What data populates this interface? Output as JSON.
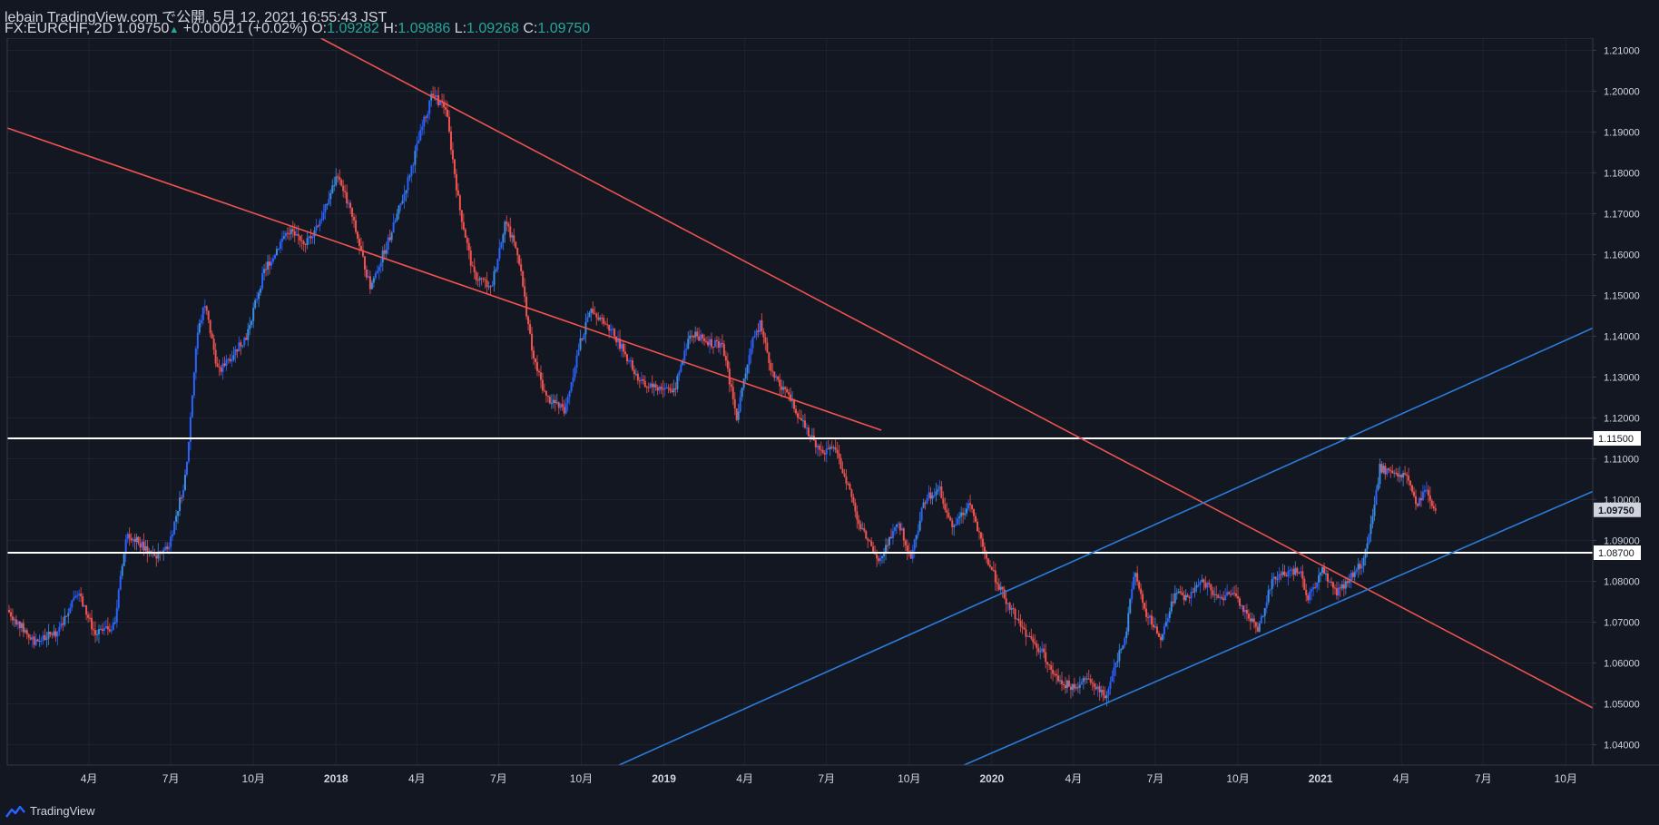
{
  "header": {
    "publish_line": "lebain TradingView.com で公開, 5月 12, 2021 16:55:43 JST",
    "symbol": "FX:EURCHF, 2D",
    "last": "1.09750",
    "change": "+0.00021 (+0.02%)",
    "o_label": "O:",
    "o": "1.09282",
    "h_label": "H:",
    "h": "1.09886",
    "l_label": "L:",
    "l": "1.09268",
    "c_label": "C:",
    "c": "1.09750"
  },
  "footer": {
    "brand": "TradingView"
  },
  "colors": {
    "background": "#131722",
    "up": "#2962ff",
    "up_alt": "#3a8ee6",
    "down": "#ef5350",
    "channel_red": "#ef5350",
    "channel_blue": "#2b7bd9",
    "hline": "#ffffff",
    "axis_text": "#d1d4dc",
    "last_price_bg": "#d1d4dc"
  },
  "chart_data": {
    "type": "line",
    "symbol": "FX:EURCHF",
    "timeframe": "2D",
    "ylim": [
      1.035,
      1.213
    ],
    "y_ticks": [
      "1.04000",
      "1.05000",
      "1.06000",
      "1.07000",
      "1.08000",
      "1.09000",
      "1.10000",
      "1.11000",
      "1.12000",
      "1.13000",
      "1.14000",
      "1.15000",
      "1.16000",
      "1.17000",
      "1.18000",
      "1.19000",
      "1.20000",
      "1.21000"
    ],
    "x_ticks": [
      {
        "label": "4月",
        "date": "2017-04-01"
      },
      {
        "label": "7月",
        "date": "2017-07-01"
      },
      {
        "label": "10月",
        "date": "2017-10-01"
      },
      {
        "label": "2018",
        "date": "2018-01-01"
      },
      {
        "label": "4月",
        "date": "2018-04-01"
      },
      {
        "label": "7月",
        "date": "2018-07-01"
      },
      {
        "label": "10月",
        "date": "2018-10-01"
      },
      {
        "label": "2019",
        "date": "2019-01-01"
      },
      {
        "label": "4月",
        "date": "2019-04-01"
      },
      {
        "label": "7月",
        "date": "2019-07-01"
      },
      {
        "label": "10月",
        "date": "2019-10-01"
      },
      {
        "label": "2020",
        "date": "2020-01-01"
      },
      {
        "label": "4月",
        "date": "2020-04-01"
      },
      {
        "label": "7月",
        "date": "2020-07-01"
      },
      {
        "label": "10月",
        "date": "2020-10-01"
      },
      {
        "label": "2021",
        "date": "2021-01-01"
      },
      {
        "label": "4月",
        "date": "2021-04-01"
      },
      {
        "label": "7月",
        "date": "2021-07-01"
      },
      {
        "label": "10月",
        "date": "2021-10-01"
      }
    ],
    "price_path": [
      [
        "2017-01-02",
        1.073
      ],
      [
        "2017-02-01",
        1.065
      ],
      [
        "2017-03-01",
        1.068
      ],
      [
        "2017-03-20",
        1.078
      ],
      [
        "2017-04-10",
        1.067
      ],
      [
        "2017-05-01",
        1.069
      ],
      [
        "2017-05-15",
        1.092
      ],
      [
        "2017-06-15",
        1.086
      ],
      [
        "2017-07-01",
        1.089
      ],
      [
        "2017-07-20",
        1.106
      ],
      [
        "2017-08-01",
        1.14
      ],
      [
        "2017-08-10",
        1.148
      ],
      [
        "2017-08-25",
        1.131
      ],
      [
        "2017-09-25",
        1.14
      ],
      [
        "2017-10-15",
        1.156
      ],
      [
        "2017-11-10",
        1.166
      ],
      [
        "2017-12-01",
        1.163
      ],
      [
        "2017-12-20",
        1.17
      ],
      [
        "2018-01-05",
        1.18
      ],
      [
        "2018-01-20",
        1.17
      ],
      [
        "2018-02-10",
        1.152
      ],
      [
        "2018-03-05",
        1.165
      ],
      [
        "2018-03-20",
        1.175
      ],
      [
        "2018-04-10",
        1.192
      ],
      [
        "2018-04-20",
        1.199
      ],
      [
        "2018-05-05",
        1.196
      ],
      [
        "2018-05-20",
        1.172
      ],
      [
        "2018-06-05",
        1.155
      ],
      [
        "2018-06-25",
        1.152
      ],
      [
        "2018-07-10",
        1.168
      ],
      [
        "2018-07-25",
        1.16
      ],
      [
        "2018-08-10",
        1.135
      ],
      [
        "2018-08-25",
        1.125
      ],
      [
        "2018-09-15",
        1.122
      ],
      [
        "2018-10-01",
        1.138
      ],
      [
        "2018-10-15",
        1.147
      ],
      [
        "2018-11-10",
        1.14
      ],
      [
        "2018-12-10",
        1.128
      ],
      [
        "2019-01-15",
        1.127
      ],
      [
        "2019-02-01",
        1.141
      ],
      [
        "2019-02-20",
        1.139
      ],
      [
        "2019-03-10",
        1.137
      ],
      [
        "2019-03-25",
        1.12
      ],
      [
        "2019-04-10",
        1.138
      ],
      [
        "2019-04-20",
        1.143
      ],
      [
        "2019-05-05",
        1.13
      ],
      [
        "2019-05-25",
        1.124
      ],
      [
        "2019-06-15",
        1.115
      ],
      [
        "2019-07-01",
        1.112
      ],
      [
        "2019-07-10",
        1.113
      ],
      [
        "2019-07-25",
        1.105
      ],
      [
        "2019-08-10",
        1.093
      ],
      [
        "2019-09-01",
        1.085
      ],
      [
        "2019-09-20",
        1.095
      ],
      [
        "2019-10-05",
        1.086
      ],
      [
        "2019-10-20",
        1.1
      ],
      [
        "2019-11-05",
        1.103
      ],
      [
        "2019-11-20",
        1.093
      ],
      [
        "2019-12-10",
        1.099
      ],
      [
        "2019-12-25",
        1.087
      ],
      [
        "2020-01-15",
        1.077
      ],
      [
        "2020-02-10",
        1.067
      ],
      [
        "2020-03-01",
        1.062
      ],
      [
        "2020-03-15",
        1.056
      ],
      [
        "2020-04-01",
        1.054
      ],
      [
        "2020-04-20",
        1.056
      ],
      [
        "2020-05-10",
        1.052
      ],
      [
        "2020-05-20",
        1.06
      ],
      [
        "2020-06-01",
        1.068
      ],
      [
        "2020-06-10",
        1.083
      ],
      [
        "2020-06-20",
        1.073
      ],
      [
        "2020-07-10",
        1.066
      ],
      [
        "2020-07-25",
        1.077
      ],
      [
        "2020-08-10",
        1.076
      ],
      [
        "2020-08-25",
        1.08
      ],
      [
        "2020-09-10",
        1.076
      ],
      [
        "2020-09-25",
        1.077
      ],
      [
        "2020-10-10",
        1.073
      ],
      [
        "2020-10-25",
        1.068
      ],
      [
        "2020-11-10",
        1.08
      ],
      [
        "2020-11-25",
        1.082
      ],
      [
        "2020-12-10",
        1.083
      ],
      [
        "2020-12-20",
        1.076
      ],
      [
        "2021-01-05",
        1.083
      ],
      [
        "2021-01-20",
        1.077
      ],
      [
        "2021-02-05",
        1.081
      ],
      [
        "2021-02-20",
        1.085
      ],
      [
        "2021-03-01",
        1.094
      ],
      [
        "2021-03-10",
        1.108
      ],
      [
        "2021-03-25",
        1.106
      ],
      [
        "2021-04-10",
        1.106
      ],
      [
        "2021-04-20",
        1.098
      ],
      [
        "2021-04-30",
        1.103
      ],
      [
        "2021-05-10",
        1.0975
      ]
    ],
    "annotations": {
      "horizontal_lines": [
        1.115,
        1.087
      ],
      "trend_lines": [
        {
          "color": "red",
          "from": [
            "2016-12-31",
            1.191
          ],
          "to": [
            "2019-08-31",
            1.117
          ]
        },
        {
          "color": "red",
          "from": [
            "2017-12-15",
            1.213
          ],
          "to": [
            "2021-10-31",
            1.049
          ]
        },
        {
          "color": "blue",
          "from": [
            "2018-11-12",
            1.035
          ],
          "to": [
            "2021-10-31",
            1.142
          ]
        },
        {
          "color": "blue",
          "from": [
            "2019-12-01",
            1.035
          ],
          "to": [
            "2021-10-31",
            1.102
          ]
        }
      ]
    },
    "last_price_label": "1.09750",
    "hline_labels": [
      "1.11500",
      "1.08700"
    ]
  }
}
